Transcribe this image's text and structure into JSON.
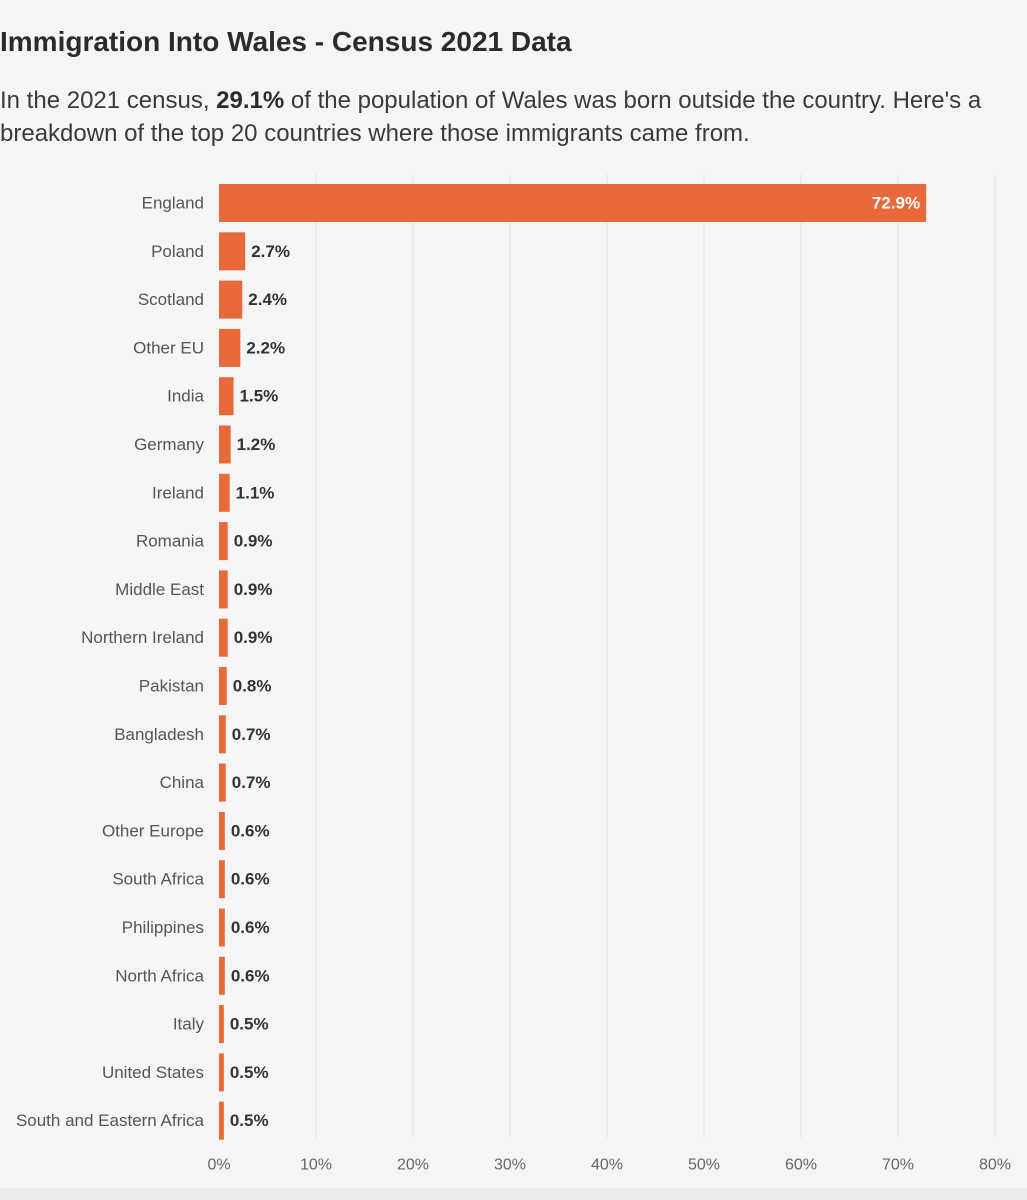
{
  "header": {
    "title": "Immigration Into Wales - Census 2021 Data",
    "subtitle_before": "In the 2021 census, ",
    "subtitle_highlight": "29.1%",
    "subtitle_after": " of the population of Wales was born outside the country. Here's a breakdown of the top 20 countries where those immigrants came from."
  },
  "chart_data": {
    "type": "bar",
    "orientation": "horizontal",
    "categories": [
      "England",
      "Poland",
      "Scotland",
      "Other EU",
      "India",
      "Germany",
      "Ireland",
      "Romania",
      "Middle East",
      "Northern Ireland",
      "Pakistan",
      "Bangladesh",
      "China",
      "Other Europe",
      "South Africa",
      "Philippines",
      "North Africa",
      "Italy",
      "United States",
      "South and Eastern Africa"
    ],
    "values": [
      72.9,
      2.7,
      2.4,
      2.2,
      1.5,
      1.2,
      1.1,
      0.9,
      0.9,
      0.9,
      0.8,
      0.7,
      0.7,
      0.6,
      0.6,
      0.6,
      0.6,
      0.5,
      0.5,
      0.5
    ],
    "value_labels": [
      "72.9%",
      "2.7%",
      "2.4%",
      "2.2%",
      "1.5%",
      "1.2%",
      "1.1%",
      "0.9%",
      "0.9%",
      "0.9%",
      "0.8%",
      "0.7%",
      "0.7%",
      "0.6%",
      "0.6%",
      "0.6%",
      "0.6%",
      "0.5%",
      "0.5%",
      "0.5%"
    ],
    "x_ticks": [
      0,
      10,
      20,
      30,
      40,
      50,
      60,
      70,
      80
    ],
    "x_tick_labels": [
      "0%",
      "10%",
      "20%",
      "30%",
      "40%",
      "50%",
      "60%",
      "70%",
      "80%"
    ],
    "xlim": [
      0,
      80
    ],
    "grid": "vertical",
    "bar_color": "#e8693a"
  }
}
